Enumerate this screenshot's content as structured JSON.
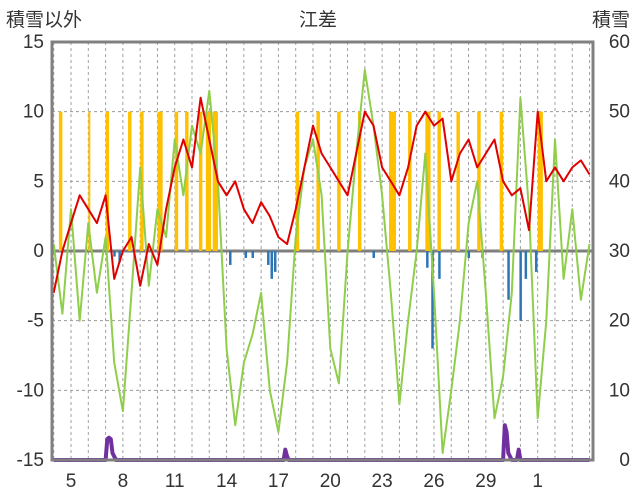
{
  "chart_data": {
    "type": "line",
    "title": "江差",
    "ylabel_left": "積雪以外",
    "ylabel_right": "積雪",
    "ylim_left": [
      -15,
      15
    ],
    "ylim_right": [
      0,
      60
    ],
    "yticks_left": [
      "15",
      "10",
      "5",
      "0",
      "-5",
      "-10",
      "-15"
    ],
    "yticks_right": [
      "60",
      "50",
      "40",
      "30",
      "20",
      "10",
      "0"
    ],
    "x_range": [
      3.9,
      35.2
    ],
    "xticks": [
      {
        "day": 5,
        "label": "5"
      },
      {
        "day": 8,
        "label": "8"
      },
      {
        "day": 11,
        "label": "11"
      },
      {
        "day": 14,
        "label": "14"
      },
      {
        "day": 17,
        "label": "17"
      },
      {
        "day": 20,
        "label": "20"
      },
      {
        "day": 23,
        "label": "23"
      },
      {
        "day": 26,
        "label": "26"
      },
      {
        "day": 29,
        "label": "29"
      },
      {
        "day": 32,
        "label": "1"
      }
    ],
    "grid": true,
    "colors": {
      "sunshine": "#ffc000",
      "precipitation": "#2e75b6",
      "temperature": "#8fce4a",
      "wind": "#e00000",
      "snow_depth": "#7030a0",
      "zero_line": "#7f7f7f",
      "frame": "#808080"
    },
    "sunshine_bars": [
      [
        4.3,
        4.5
      ],
      [
        6.0,
        6.1
      ],
      [
        7.0,
        7.2
      ],
      [
        8.3,
        8.5
      ],
      [
        9.0,
        9.2
      ],
      [
        10.0,
        10.3
      ],
      [
        11.0,
        11.2
      ],
      [
        11.6,
        11.8
      ],
      [
        12.4,
        12.6
      ],
      [
        12.8,
        13.1
      ],
      [
        13.2,
        13.5
      ],
      [
        18.0,
        18.2
      ],
      [
        19.2,
        19.4
      ],
      [
        20.4,
        20.6
      ],
      [
        21.6,
        21.8
      ],
      [
        23.4,
        23.8
      ],
      [
        24.5,
        24.7
      ],
      [
        25.5,
        25.8
      ],
      [
        26.2,
        26.4
      ],
      [
        27.3,
        27.5
      ],
      [
        28.5,
        28.7
      ],
      [
        29.8,
        30.0
      ],
      [
        32.0,
        32.3
      ]
    ],
    "precip_bars": [
      [
        7.5,
        -0.4
      ],
      [
        7.8,
        -0.8
      ],
      [
        14.2,
        -1.0
      ],
      [
        15.1,
        -0.5
      ],
      [
        15.5,
        -0.5
      ],
      [
        16.4,
        -1.0
      ],
      [
        16.6,
        -2.0
      ],
      [
        16.8,
        -1.5
      ],
      [
        22.5,
        -0.5
      ],
      [
        25.6,
        -1.2
      ],
      [
        25.9,
        -7.0
      ],
      [
        26.3,
        -2.0
      ],
      [
        28.0,
        -0.5
      ],
      [
        28.8,
        -0.5
      ],
      [
        30.3,
        -3.5
      ],
      [
        31.0,
        -5.0
      ],
      [
        31.3,
        -2.0
      ],
      [
        31.9,
        -1.5
      ]
    ],
    "series": [
      {
        "key": "temperature",
        "x": [
          4.0,
          4.5,
          5.0,
          5.5,
          6.0,
          6.5,
          7.0,
          7.5,
          8.0,
          8.5,
          9.0,
          9.5,
          10.0,
          10.5,
          11.0,
          11.5,
          12.0,
          12.5,
          13.0,
          13.5,
          14.0,
          14.5,
          15.0,
          15.5,
          16.0,
          16.5,
          17.0,
          17.5,
          18.0,
          18.5,
          19.0,
          19.5,
          20.0,
          20.5,
          21.0,
          21.5,
          22.0,
          22.5,
          23.0,
          23.5,
          24.0,
          24.5,
          25.0,
          25.5,
          26.0,
          26.5,
          27.0,
          27.5,
          28.0,
          28.5,
          29.0,
          29.5,
          30.0,
          30.5,
          31.0,
          31.5,
          32.0,
          32.5,
          33.0,
          33.5,
          34.0,
          34.5,
          35.0
        ],
        "y": [
          0.5,
          -4.5,
          3.0,
          -5.0,
          2.0,
          -3.0,
          1.0,
          -8.0,
          -11.5,
          -3.0,
          6.0,
          -2.5,
          3.0,
          1.0,
          8.0,
          4.0,
          9.0,
          7.0,
          11.5,
          5.0,
          -7.0,
          -12.5,
          -8.0,
          -6.0,
          -3.0,
          -10.0,
          -13.0,
          -8.0,
          1.0,
          6.0,
          8.0,
          4.0,
          -7.0,
          -9.5,
          0.0,
          7.0,
          13.0,
          9.0,
          4.0,
          -3.0,
          -11.0,
          -5.0,
          0.0,
          7.0,
          -3.0,
          -14.5,
          -10.0,
          -5.0,
          2.0,
          5.0,
          -3.0,
          -12.0,
          -9.0,
          -3.0,
          11.0,
          3.0,
          -12.0,
          -5.0,
          8.0,
          -2.0,
          3.0,
          -3.5,
          0.5
        ]
      },
      {
        "key": "wind",
        "x": [
          4.0,
          4.5,
          5.0,
          5.5,
          6.0,
          6.5,
          7.0,
          7.5,
          8.0,
          8.5,
          9.0,
          9.5,
          10.0,
          10.5,
          11.0,
          11.5,
          12.0,
          12.5,
          13.0,
          13.5,
          14.0,
          14.5,
          15.0,
          15.5,
          16.0,
          16.5,
          17.0,
          17.5,
          18.0,
          18.5,
          19.0,
          19.5,
          20.0,
          20.5,
          21.0,
          21.5,
          22.0,
          22.5,
          23.0,
          23.5,
          24.0,
          24.5,
          25.0,
          25.5,
          26.0,
          26.5,
          27.0,
          27.5,
          28.0,
          28.5,
          29.0,
          29.5,
          30.0,
          30.5,
          31.0,
          31.5,
          32.0,
          32.5,
          33.0,
          33.5,
          34.0,
          34.5,
          35.0
        ],
        "y": [
          -3.0,
          0.0,
          2.0,
          4.0,
          3.0,
          2.0,
          4.0,
          -2.0,
          0.0,
          1.0,
          -2.5,
          0.5,
          -1.0,
          3.0,
          6.0,
          8.0,
          6.0,
          11.0,
          8.0,
          5.0,
          4.0,
          5.0,
          3.0,
          2.0,
          3.5,
          2.5,
          1.0,
          0.5,
          3.0,
          6.0,
          9.0,
          7.0,
          6.0,
          5.0,
          4.0,
          7.0,
          10.0,
          9.0,
          6.0,
          5.0,
          4.0,
          6.0,
          9.0,
          10.0,
          9.0,
          9.5,
          5.0,
          7.0,
          8.0,
          6.0,
          7.0,
          8.0,
          5.0,
          4.0,
          4.5,
          1.5,
          10.0,
          5.0,
          6.0,
          5.0,
          6.0,
          6.5,
          5.5
        ]
      },
      {
        "key": "snow_depth",
        "x": [
          4.0,
          7.0,
          7.1,
          7.2,
          7.3,
          7.4,
          7.6,
          8.0,
          17.3,
          17.4,
          17.5,
          17.6,
          30.0,
          30.1,
          30.2,
          30.3,
          30.5,
          30.8,
          30.9,
          31.0,
          35.0
        ],
        "y": [
          0.0,
          0.0,
          3.0,
          3.2,
          3.0,
          1.0,
          0.0,
          0.0,
          0.0,
          1.5,
          0.5,
          0.0,
          0.0,
          5.0,
          4.0,
          1.0,
          0.0,
          0.0,
          1.5,
          0.0,
          0.0
        ]
      }
    ]
  }
}
